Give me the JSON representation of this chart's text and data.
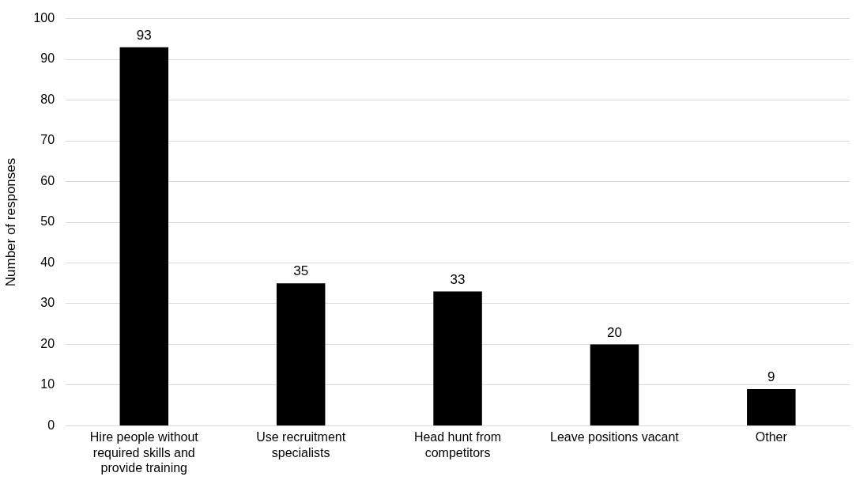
{
  "chart_data": {
    "type": "bar",
    "ylabel": "Number of responses",
    "categories": [
      "Hire people without required skills and provide training",
      "Use recruitment specialists",
      "Head hunt from competitors",
      "Leave positions vacant",
      "Other"
    ],
    "values": [
      93,
      35,
      33,
      20,
      9
    ],
    "color": "#000000",
    "ylim": [
      0,
      100
    ],
    "yticks": [
      0,
      10,
      20,
      30,
      40,
      50,
      60,
      70,
      80,
      90,
      100
    ],
    "grid": "y",
    "data_labels": true,
    "legend": false
  }
}
